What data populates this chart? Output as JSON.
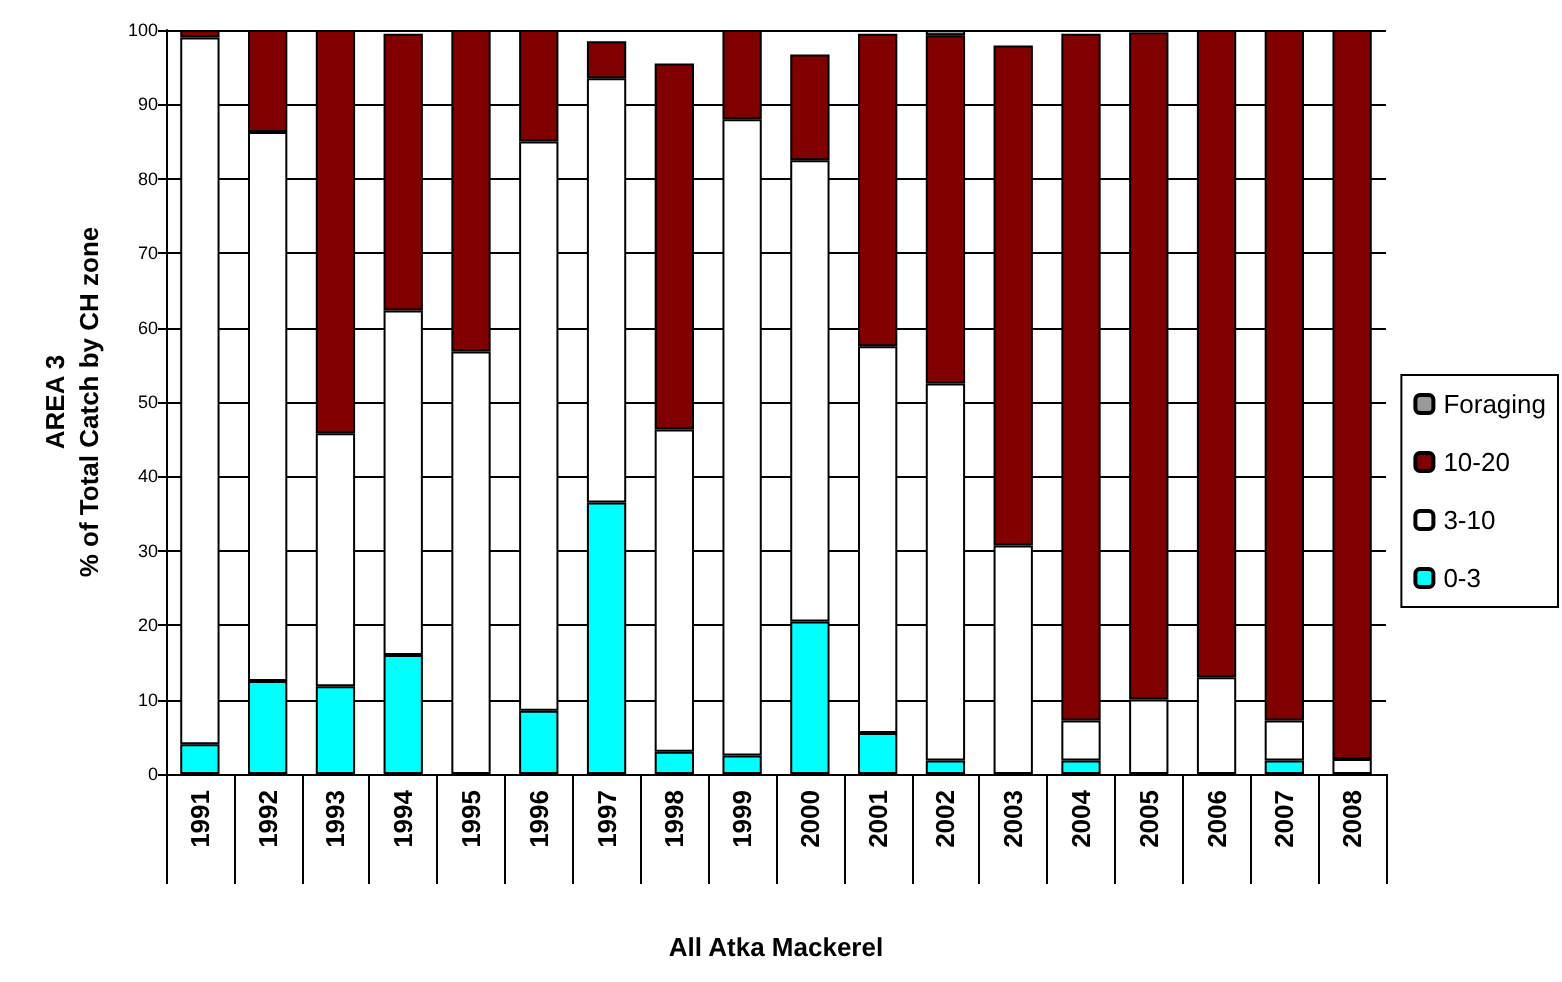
{
  "chart_data": {
    "type": "bar",
    "stacked": true,
    "xlabel": "All Atka Mackerel",
    "ylabel": "AREA 3\n% of Total Catch by CH zone",
    "categories": [
      "1991",
      "1992",
      "1993",
      "1994",
      "1995",
      "1996",
      "1997",
      "1998",
      "1999",
      "2000",
      "2001",
      "2002",
      "2003",
      "2004",
      "2005",
      "2006",
      "2007",
      "2008"
    ],
    "series": [
      {
        "name": "0-3",
        "color": "#00ffff",
        "values": [
          4,
          12.5,
          11.8,
          16,
          0,
          8.5,
          36.5,
          3,
          2.5,
          20.5,
          5.5,
          1.8,
          null,
          1.8,
          null,
          0,
          1.8,
          0
        ]
      },
      {
        "name": "3-10",
        "color": "#ffffff",
        "values": [
          95,
          73.8,
          34,
          46.3,
          56.8,
          76.5,
          57,
          43.3,
          85.5,
          62,
          52,
          50.7,
          30.7,
          5.4,
          10,
          13,
          5.4,
          2
        ]
      },
      {
        "name": "10-20",
        "color": "#800000",
        "values": [
          1,
          13.7,
          54.2,
          37.2,
          43.2,
          15,
          5,
          49.2,
          12,
          14.2,
          42,
          46.8,
          67.2,
          92.3,
          89.7,
          87,
          92.8,
          98
        ]
      },
      {
        "name": "Foraging",
        "color": "#999999",
        "values": [
          0,
          0,
          0,
          0,
          0,
          0,
          0,
          0,
          0,
          0,
          0,
          0.7,
          0,
          0,
          0,
          0,
          0,
          0
        ]
      }
    ],
    "ylim": [
      0,
      100
    ],
    "yticks": [
      0,
      10,
      20,
      30,
      40,
      50,
      60,
      70,
      80,
      90,
      100
    ],
    "grid": "y",
    "legend": "right"
  }
}
